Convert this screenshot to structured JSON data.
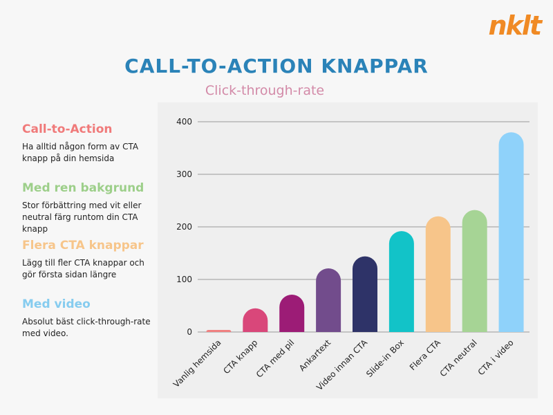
{
  "brand": {
    "logo_text": "nklt",
    "logo_color": "#f08a24"
  },
  "title": "CALL-TO-ACTION KNAPPAR",
  "subtitle": "Click-through-rate",
  "colors": {
    "title": "#2b83b8",
    "subtitle": "#d38aa8"
  },
  "tips": [
    {
      "heading": "Call-to-Action",
      "color": "#f07a7a",
      "text": "Ha alltid någon form av CTA knapp på din hemsida"
    },
    {
      "heading": "Med ren bakgrund",
      "color": "#9dcf8a",
      "text": "Stor förbättring med vit eller neutral färg runtom din CTA knapp"
    },
    {
      "heading": "Flera CTA knappar",
      "color": "#f7c58a",
      "text": "Lägg till fler CTA knappar och gör första sidan längre"
    },
    {
      "heading": "Med video",
      "color": "#86ccef",
      "text": "Absolut bäst click-through-rate med video."
    }
  ],
  "chart_data": {
    "type": "bar",
    "title": "",
    "xlabel": "",
    "ylabel": "",
    "ylim": [
      0,
      400
    ],
    "yticks": [
      0,
      100,
      200,
      300,
      400
    ],
    "grid": true,
    "legend": "none",
    "categories": [
      "Vanlig hemsida",
      "CTA knapp",
      "CTA med pil",
      "Ankartext",
      "Video innan CTA",
      "Slide-in Box",
      "Flera CTA",
      "CTA neutral",
      "CTA i video"
    ],
    "values": [
      4,
      45,
      71,
      121,
      144,
      192,
      220,
      232,
      380
    ],
    "bar_colors": [
      "#f08080",
      "#d9477a",
      "#9c1c76",
      "#724c8c",
      "#2e3368",
      "#12c3c8",
      "#f7c58a",
      "#a6d495",
      "#8fd2fa"
    ]
  }
}
